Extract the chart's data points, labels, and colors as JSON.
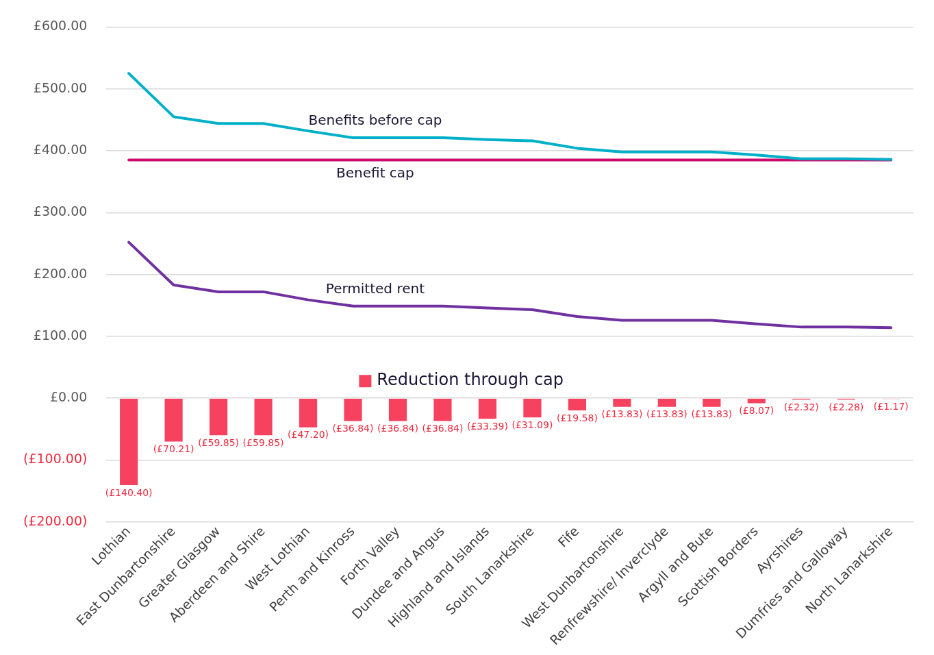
{
  "chart_data": {
    "type": "bar",
    "categories": [
      "Lothian",
      "East Dunbartonshire",
      "Greater Glasgow",
      "Aberdeen and Shire",
      "West Lothian",
      "Perth and Kinross",
      "Forth Valley",
      "Dundee and Angus",
      "Highland and Islands",
      "South Lanarkshire",
      "Fife",
      "West Dunbartonshire",
      "Renfrewshire/ Inverclyde",
      "Argyll and Bute",
      "Scottish Borders",
      "Ayrshires",
      "Dumfries and Galloway",
      "North Lanarkshire"
    ],
    "series": [
      {
        "name": "Reduction through cap",
        "color": "#f7425f",
        "values": [
          -140.4,
          -70.21,
          -59.85,
          -59.85,
          -47.2,
          -36.84,
          -36.84,
          -36.84,
          -33.39,
          -31.09,
          -19.58,
          -13.83,
          -13.83,
          -13.83,
          -8.07,
          -2.32,
          -2.28,
          -1.17
        ],
        "value_labels": [
          "(£140.40)",
          "(£70.21)",
          "(£59.85)",
          "(£59.85)",
          "(£47.20)",
          "(£36.84)",
          "(£36.84)",
          "(£36.84)",
          "(£33.39)",
          "(£31.09)",
          "(£19.58)",
          "(£13.83)",
          "(£13.83)",
          "(£13.83)",
          "(£8.07)",
          "(£2.32)",
          "(£2.28)",
          "(£1.17)"
        ]
      },
      {
        "name": "Benefits before cap",
        "type": "line",
        "color": "#00b0c8",
        "values": [
          525,
          455,
          444,
          444,
          432,
          421,
          421,
          421,
          418,
          416,
          404,
          398,
          398,
          398,
          393,
          387,
          387,
          386
        ]
      },
      {
        "name": "Benefit cap",
        "type": "line",
        "color": "#cc0a6e",
        "values": [
          385,
          385,
          385,
          385,
          385,
          385,
          385,
          385,
          385,
          385,
          385,
          385,
          385,
          385,
          385,
          385,
          385,
          385
        ]
      },
      {
        "name": "Permitted rent",
        "type": "line",
        "color": "#7030a0",
        "values": [
          252,
          183,
          172,
          172,
          159,
          149,
          149,
          149,
          146,
          143,
          132,
          126,
          126,
          126,
          120,
          115,
          115,
          114
        ]
      }
    ],
    "ylim": [
      -200,
      600
    ],
    "yticks": [
      {
        "value": -200,
        "label": "(£200.00)"
      },
      {
        "value": -100,
        "label": "(£100.00)"
      },
      {
        "value": 0,
        "label": "£0.00"
      },
      {
        "value": 100,
        "label": "£100.00"
      },
      {
        "value": 200,
        "label": "£200.00"
      },
      {
        "value": 300,
        "label": "£300.00"
      },
      {
        "value": 400,
        "label": "£400.00"
      },
      {
        "value": 500,
        "label": "£500.00"
      },
      {
        "value": 600,
        "label": "£600.00"
      }
    ],
    "grid": "y",
    "legend": "center",
    "marker": "none",
    "line_style": "solid"
  }
}
